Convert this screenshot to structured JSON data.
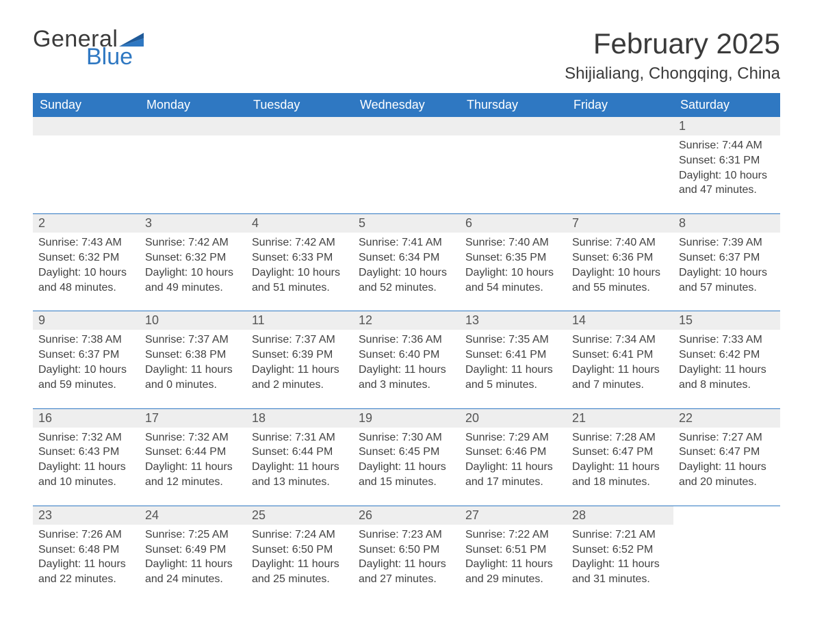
{
  "brand": {
    "word1": "General",
    "word2": "Blue"
  },
  "title": "February 2025",
  "location": "Shijialiang, Chongqing, China",
  "colors": {
    "header_bg": "#2f78c2",
    "header_text": "#ffffff",
    "row_divider": "#2f78c2",
    "daynum_bg": "#eeeeee",
    "body_text": "#414141",
    "page_bg": "#ffffff",
    "logo_blue": "#2f78c2",
    "logo_gray": "#3a3a3a"
  },
  "typography": {
    "title_fontsize": 42,
    "location_fontsize": 24,
    "dow_fontsize": 18,
    "daynum_fontsize": 18,
    "body_fontsize": 16,
    "font_family": "Arial"
  },
  "layout": {
    "columns": 7,
    "rows": 5
  },
  "days_of_week": [
    "Sunday",
    "Monday",
    "Tuesday",
    "Wednesday",
    "Thursday",
    "Friday",
    "Saturday"
  ],
  "label_sunrise": "Sunrise",
  "label_sunset": "Sunset",
  "label_daylight": "Daylight",
  "weeks": [
    [
      {
        "empty": true
      },
      {
        "empty": true
      },
      {
        "empty": true
      },
      {
        "empty": true
      },
      {
        "empty": true
      },
      {
        "empty": true
      },
      {
        "n": "1",
        "sunrise": "7:44 AM",
        "sunset": "6:31 PM",
        "dl1": "10 hours",
        "dl2": "and 47 minutes."
      }
    ],
    [
      {
        "n": "2",
        "sunrise": "7:43 AM",
        "sunset": "6:32 PM",
        "dl1": "10 hours",
        "dl2": "and 48 minutes."
      },
      {
        "n": "3",
        "sunrise": "7:42 AM",
        "sunset": "6:32 PM",
        "dl1": "10 hours",
        "dl2": "and 49 minutes."
      },
      {
        "n": "4",
        "sunrise": "7:42 AM",
        "sunset": "6:33 PM",
        "dl1": "10 hours",
        "dl2": "and 51 minutes."
      },
      {
        "n": "5",
        "sunrise": "7:41 AM",
        "sunset": "6:34 PM",
        "dl1": "10 hours",
        "dl2": "and 52 minutes."
      },
      {
        "n": "6",
        "sunrise": "7:40 AM",
        "sunset": "6:35 PM",
        "dl1": "10 hours",
        "dl2": "and 54 minutes."
      },
      {
        "n": "7",
        "sunrise": "7:40 AM",
        "sunset": "6:36 PM",
        "dl1": "10 hours",
        "dl2": "and 55 minutes."
      },
      {
        "n": "8",
        "sunrise": "7:39 AM",
        "sunset": "6:37 PM",
        "dl1": "10 hours",
        "dl2": "and 57 minutes."
      }
    ],
    [
      {
        "n": "9",
        "sunrise": "7:38 AM",
        "sunset": "6:37 PM",
        "dl1": "10 hours",
        "dl2": "and 59 minutes."
      },
      {
        "n": "10",
        "sunrise": "7:37 AM",
        "sunset": "6:38 PM",
        "dl1": "11 hours",
        "dl2": "and 0 minutes."
      },
      {
        "n": "11",
        "sunrise": "7:37 AM",
        "sunset": "6:39 PM",
        "dl1": "11 hours",
        "dl2": "and 2 minutes."
      },
      {
        "n": "12",
        "sunrise": "7:36 AM",
        "sunset": "6:40 PM",
        "dl1": "11 hours",
        "dl2": "and 3 minutes."
      },
      {
        "n": "13",
        "sunrise": "7:35 AM",
        "sunset": "6:41 PM",
        "dl1": "11 hours",
        "dl2": "and 5 minutes."
      },
      {
        "n": "14",
        "sunrise": "7:34 AM",
        "sunset": "6:41 PM",
        "dl1": "11 hours",
        "dl2": "and 7 minutes."
      },
      {
        "n": "15",
        "sunrise": "7:33 AM",
        "sunset": "6:42 PM",
        "dl1": "11 hours",
        "dl2": "and 8 minutes."
      }
    ],
    [
      {
        "n": "16",
        "sunrise": "7:32 AM",
        "sunset": "6:43 PM",
        "dl1": "11 hours",
        "dl2": "and 10 minutes."
      },
      {
        "n": "17",
        "sunrise": "7:32 AM",
        "sunset": "6:44 PM",
        "dl1": "11 hours",
        "dl2": "and 12 minutes."
      },
      {
        "n": "18",
        "sunrise": "7:31 AM",
        "sunset": "6:44 PM",
        "dl1": "11 hours",
        "dl2": "and 13 minutes."
      },
      {
        "n": "19",
        "sunrise": "7:30 AM",
        "sunset": "6:45 PM",
        "dl1": "11 hours",
        "dl2": "and 15 minutes."
      },
      {
        "n": "20",
        "sunrise": "7:29 AM",
        "sunset": "6:46 PM",
        "dl1": "11 hours",
        "dl2": "and 17 minutes."
      },
      {
        "n": "21",
        "sunrise": "7:28 AM",
        "sunset": "6:47 PM",
        "dl1": "11 hours",
        "dl2": "and 18 minutes."
      },
      {
        "n": "22",
        "sunrise": "7:27 AM",
        "sunset": "6:47 PM",
        "dl1": "11 hours",
        "dl2": "and 20 minutes."
      }
    ],
    [
      {
        "n": "23",
        "sunrise": "7:26 AM",
        "sunset": "6:48 PM",
        "dl1": "11 hours",
        "dl2": "and 22 minutes."
      },
      {
        "n": "24",
        "sunrise": "7:25 AM",
        "sunset": "6:49 PM",
        "dl1": "11 hours",
        "dl2": "and 24 minutes."
      },
      {
        "n": "25",
        "sunrise": "7:24 AM",
        "sunset": "6:50 PM",
        "dl1": "11 hours",
        "dl2": "and 25 minutes."
      },
      {
        "n": "26",
        "sunrise": "7:23 AM",
        "sunset": "6:50 PM",
        "dl1": "11 hours",
        "dl2": "and 27 minutes."
      },
      {
        "n": "27",
        "sunrise": "7:22 AM",
        "sunset": "6:51 PM",
        "dl1": "11 hours",
        "dl2": "and 29 minutes."
      },
      {
        "n": "28",
        "sunrise": "7:21 AM",
        "sunset": "6:52 PM",
        "dl1": "11 hours",
        "dl2": "and 31 minutes."
      },
      {
        "empty": true,
        "no_bar": true
      }
    ]
  ]
}
